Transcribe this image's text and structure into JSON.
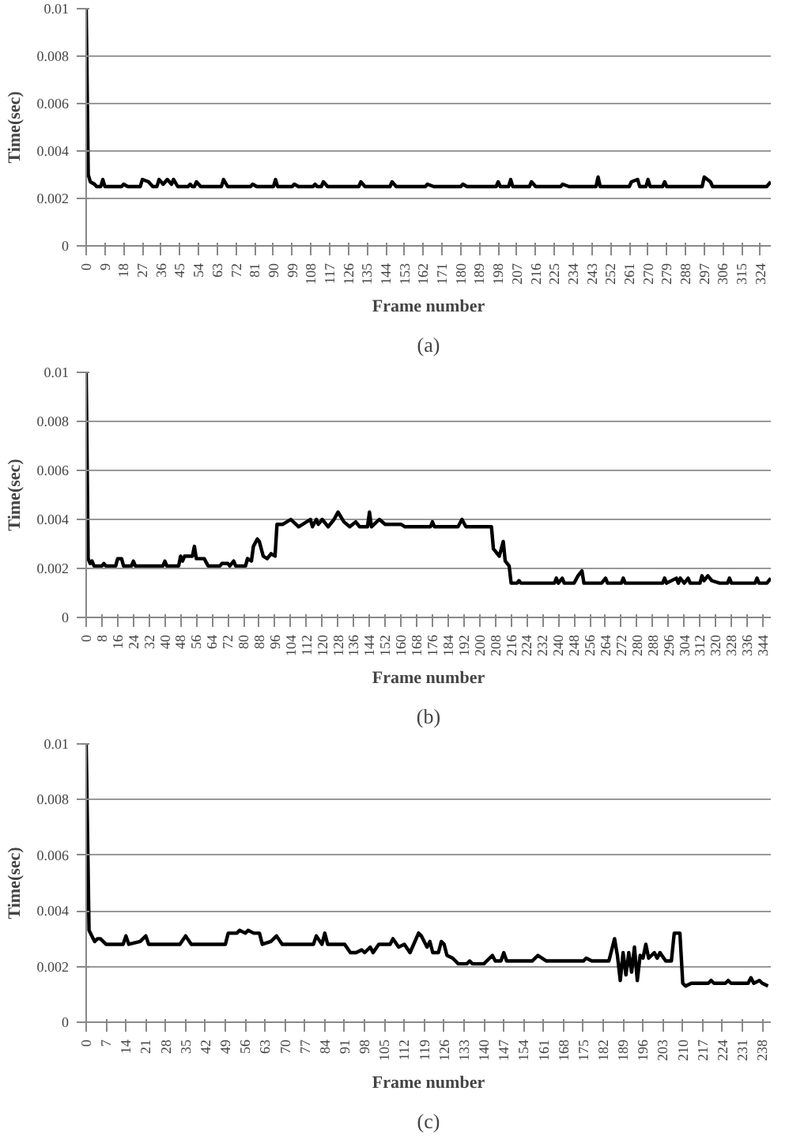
{
  "chart_data": [
    {
      "type": "line",
      "xlabel": "Frame number",
      "ylabel": "Time(sec)",
      "annotations": [
        "(a)"
      ],
      "xlim": [
        0,
        329
      ],
      "ylim": [
        0,
        0.01
      ],
      "grid": "y",
      "line_style": "solid",
      "xticks": [
        0,
        9,
        18,
        27,
        36,
        45,
        54,
        63,
        72,
        81,
        90,
        99,
        108,
        117,
        126,
        135,
        144,
        153,
        162,
        171,
        180,
        189,
        198,
        207,
        216,
        225,
        234,
        243,
        252,
        261,
        270,
        279,
        288,
        297,
        306,
        315,
        324
      ],
      "yticks": [
        0,
        0.002,
        0.004,
        0.006,
        0.008,
        0.01
      ],
      "series": [
        {
          "color": "#000000",
          "x": [
            0,
            1,
            2,
            4,
            5,
            7,
            8,
            9,
            17,
            18,
            20,
            26,
            27,
            30,
            32,
            34,
            35,
            37,
            39,
            41,
            42,
            44,
            49,
            50,
            51,
            52,
            53,
            55,
            65,
            66,
            68,
            79,
            80,
            82,
            90,
            91,
            92,
            99,
            100,
            102,
            109,
            110,
            111,
            113,
            114,
            116,
            131,
            132,
            134,
            146,
            147,
            149,
            163,
            164,
            167,
            180,
            181,
            183,
            197,
            198,
            199,
            203,
            204,
            205,
            213,
            214,
            216,
            228,
            229,
            232,
            245,
            246,
            247,
            261,
            262,
            265,
            266,
            269,
            270,
            271,
            277,
            278,
            279,
            296,
            297,
            300,
            301,
            327,
            329
          ],
          "values": [
            0.01,
            0.003,
            0.0027,
            0.0026,
            0.0025,
            0.0025,
            0.0028,
            0.0025,
            0.0025,
            0.0026,
            0.0025,
            0.0025,
            0.0028,
            0.0027,
            0.0025,
            0.0025,
            0.0028,
            0.0026,
            0.0028,
            0.0026,
            0.0028,
            0.0025,
            0.0025,
            0.0026,
            0.0025,
            0.0025,
            0.0027,
            0.0025,
            0.0025,
            0.0028,
            0.0025,
            0.0025,
            0.0026,
            0.0025,
            0.0025,
            0.0028,
            0.0025,
            0.0025,
            0.0026,
            0.0025,
            0.0025,
            0.0026,
            0.0025,
            0.0025,
            0.0027,
            0.0025,
            0.0025,
            0.0027,
            0.0025,
            0.0025,
            0.0027,
            0.0025,
            0.0025,
            0.0026,
            0.0025,
            0.0025,
            0.0026,
            0.0025,
            0.0025,
            0.0027,
            0.0025,
            0.0025,
            0.0028,
            0.0025,
            0.0025,
            0.0027,
            0.0025,
            0.0025,
            0.0026,
            0.0025,
            0.0025,
            0.0029,
            0.0025,
            0.0025,
            0.0027,
            0.0028,
            0.0025,
            0.0025,
            0.0028,
            0.0025,
            0.0025,
            0.0027,
            0.0025,
            0.0025,
            0.0029,
            0.0027,
            0.0025,
            0.0025,
            0.0027
          ]
        }
      ]
    },
    {
      "type": "line",
      "xlabel": "Frame number",
      "ylabel": "Time(sec)",
      "annotations": [
        "(b)"
      ],
      "xlim": [
        0,
        348
      ],
      "ylim": [
        0,
        0.01
      ],
      "grid": "y",
      "line_style": "solid",
      "xticks": [
        0,
        8,
        16,
        24,
        32,
        40,
        48,
        56,
        64,
        72,
        80,
        88,
        96,
        104,
        112,
        120,
        128,
        136,
        144,
        152,
        160,
        168,
        176,
        184,
        192,
        200,
        208,
        216,
        224,
        232,
        240,
        248,
        256,
        264,
        272,
        280,
        288,
        296,
        304,
        312,
        320,
        328,
        336,
        344
      ],
      "yticks": [
        0,
        0.002,
        0.004,
        0.006,
        0.008,
        0.01
      ],
      "series": [
        {
          "color": "#000000",
          "x": [
            0,
            1,
            2,
            3,
            4,
            8,
            9,
            10,
            15,
            16,
            18,
            19,
            23,
            24,
            25,
            39,
            40,
            41,
            47,
            48,
            49,
            50,
            54,
            55,
            56,
            60,
            62,
            68,
            69,
            72,
            73,
            75,
            76,
            81,
            82,
            84,
            85,
            87,
            88,
            90,
            92,
            94,
            96,
            97,
            100,
            104,
            108,
            114,
            115,
            117,
            118,
            120,
            123,
            126,
            128,
            131,
            134,
            137,
            139,
            143,
            144,
            145,
            149,
            152,
            160,
            162,
            175,
            176,
            177,
            189,
            191,
            193,
            206,
            207,
            210,
            212,
            213,
            215,
            216,
            219,
            220,
            221,
            238,
            239,
            240,
            242,
            243,
            248,
            250,
            252,
            253,
            262,
            264,
            265,
            272,
            273,
            274,
            293,
            294,
            295,
            300,
            301,
            302,
            304,
            306,
            307,
            312,
            313,
            314,
            316,
            318,
            322,
            326,
            327,
            328,
            340,
            341,
            342,
            346,
            348
          ],
          "values": [
            0.01,
            0.0024,
            0.0022,
            0.0023,
            0.0021,
            0.0021,
            0.0022,
            0.0021,
            0.0021,
            0.0024,
            0.0024,
            0.0021,
            0.0021,
            0.0023,
            0.0021,
            0.0021,
            0.0023,
            0.0021,
            0.0021,
            0.0025,
            0.0023,
            0.0025,
            0.0025,
            0.0029,
            0.0024,
            0.0024,
            0.0021,
            0.0021,
            0.0022,
            0.0022,
            0.0021,
            0.0023,
            0.0021,
            0.0021,
            0.0024,
            0.0023,
            0.0029,
            0.0032,
            0.0031,
            0.0025,
            0.0024,
            0.0026,
            0.0025,
            0.0038,
            0.0038,
            0.004,
            0.0037,
            0.004,
            0.0037,
            0.004,
            0.0038,
            0.004,
            0.0037,
            0.004,
            0.0043,
            0.0039,
            0.0037,
            0.0039,
            0.0037,
            0.0037,
            0.0043,
            0.0037,
            0.004,
            0.0038,
            0.0038,
            0.0037,
            0.0037,
            0.0039,
            0.0037,
            0.0037,
            0.004,
            0.0037,
            0.0037,
            0.0028,
            0.0025,
            0.0031,
            0.0023,
            0.0021,
            0.0014,
            0.0014,
            0.0015,
            0.0014,
            0.0014,
            0.0016,
            0.0014,
            0.0016,
            0.0014,
            0.0014,
            0.0017,
            0.0019,
            0.0014,
            0.0014,
            0.0016,
            0.0014,
            0.0014,
            0.0016,
            0.0014,
            0.0014,
            0.0016,
            0.0014,
            0.0016,
            0.0014,
            0.0016,
            0.0014,
            0.0016,
            0.0014,
            0.0014,
            0.0017,
            0.0015,
            0.0017,
            0.0015,
            0.0014,
            0.0014,
            0.0016,
            0.0014,
            0.0014,
            0.0016,
            0.0014,
            0.0014,
            0.0016
          ]
        }
      ]
    },
    {
      "type": "line",
      "xlabel": "Frame number",
      "ylabel": "Time(sec)",
      "annotations": [
        "(c)"
      ],
      "xlim": [
        0,
        241
      ],
      "ylim": [
        0,
        0.01
      ],
      "grid": "y",
      "line_style": "solid",
      "xticks": [
        0,
        7,
        14,
        21,
        28,
        35,
        42,
        49,
        56,
        63,
        70,
        77,
        84,
        91,
        98,
        105,
        112,
        119,
        126,
        133,
        140,
        147,
        154,
        161,
        168,
        175,
        182,
        189,
        196,
        203,
        210,
        217,
        224,
        231,
        238
      ],
      "yticks": [
        0,
        0.002,
        0.004,
        0.006,
        0.008,
        0.01
      ],
      "series": [
        {
          "color": "#000000",
          "x": [
            0,
            1,
            2,
            3,
            4,
            5,
            7,
            13,
            14,
            15,
            19,
            21,
            22,
            33,
            35,
            37,
            49,
            50,
            53,
            54,
            56,
            57,
            59,
            61,
            62,
            65,
            67,
            69,
            80,
            81,
            83,
            84,
            85,
            91,
            93,
            95,
            97,
            98,
            100,
            101,
            103,
            107,
            108,
            110,
            112,
            114,
            117,
            118,
            120,
            121,
            122,
            124,
            125,
            126,
            127,
            129,
            131,
            134,
            135,
            136,
            140,
            142,
            143,
            144,
            146,
            147,
            148,
            157,
            159,
            162,
            166,
            175,
            176,
            178,
            184,
            186,
            187,
            188,
            189,
            190,
            191,
            192,
            193,
            194,
            195,
            196,
            197,
            198,
            200,
            201,
            202,
            204,
            206,
            207,
            209,
            210,
            211,
            213,
            219,
            220,
            221,
            225,
            226,
            227,
            233,
            234,
            235,
            237,
            238,
            240
          ],
          "values": [
            0.01,
            0.0033,
            0.0031,
            0.0029,
            0.003,
            0.003,
            0.0028,
            0.0028,
            0.0031,
            0.0028,
            0.0029,
            0.0031,
            0.0028,
            0.0028,
            0.0031,
            0.0028,
            0.0028,
            0.0032,
            0.0032,
            0.0033,
            0.0032,
            0.0033,
            0.0032,
            0.0032,
            0.0028,
            0.0029,
            0.0031,
            0.0028,
            0.0028,
            0.0031,
            0.0028,
            0.0032,
            0.0028,
            0.0028,
            0.0025,
            0.0025,
            0.0026,
            0.0025,
            0.0027,
            0.0025,
            0.0028,
            0.0028,
            0.003,
            0.0027,
            0.0028,
            0.0025,
            0.0032,
            0.0031,
            0.0027,
            0.0029,
            0.0025,
            0.0025,
            0.0029,
            0.0028,
            0.0024,
            0.0023,
            0.0021,
            0.0021,
            0.0022,
            0.0021,
            0.0021,
            0.0023,
            0.0024,
            0.0022,
            0.0022,
            0.0025,
            0.0022,
            0.0022,
            0.0024,
            0.0022,
            0.0022,
            0.0022,
            0.0023,
            0.0022,
            0.0022,
            0.003,
            0.0024,
            0.0015,
            0.0025,
            0.0017,
            0.0025,
            0.0018,
            0.0027,
            0.0015,
            0.0024,
            0.0023,
            0.0028,
            0.0023,
            0.0025,
            0.0023,
            0.0025,
            0.0022,
            0.0022,
            0.0032,
            0.0032,
            0.0014,
            0.0013,
            0.0014,
            0.0014,
            0.0015,
            0.0014,
            0.0014,
            0.0015,
            0.0014,
            0.0014,
            0.0016,
            0.0014,
            0.0015,
            0.0014,
            0.0013
          ]
        }
      ]
    }
  ]
}
